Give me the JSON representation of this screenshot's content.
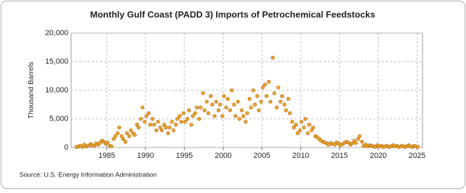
{
  "chart_data": {
    "type": "scatter",
    "title": "Monthly Gulf Coast (PADD 3) Imports of Petrochemical Feedstocks",
    "y_label": "Thousand Barrels",
    "source": "Source: U.S. Energy Information Administration",
    "color": "#f0a830",
    "edge_color": "#a05a00",
    "grid": true,
    "xlim": [
      1980.4,
      2025.7
    ],
    "ylim": [
      0,
      20000
    ],
    "xticks": [
      1985,
      1990,
      1995,
      2000,
      2005,
      2010,
      2015,
      2020,
      2025
    ],
    "yticks": [
      0,
      {
        "value": 5000,
        "label": "5,000"
      },
      {
        "value": 10000,
        "label": "10,000"
      },
      {
        "value": 15000,
        "label": "15,000"
      },
      {
        "value": 20000,
        "label": "20,000"
      }
    ],
    "x": [
      1981.1,
      1981.4,
      1981.6,
      1981.9,
      1982.1,
      1982.4,
      1982.6,
      1982.9,
      1983.1,
      1983.4,
      1983.6,
      1983.9,
      1984.1,
      1984.4,
      1984.6,
      1984.9,
      1985.1,
      1985.4,
      1985.6,
      1985.9,
      1986.1,
      1986.4,
      1986.6,
      1986.9,
      1987.1,
      1987.4,
      1987.6,
      1987.9,
      1988.1,
      1988.4,
      1988.6,
      1988.9,
      1989.1,
      1989.4,
      1989.6,
      1989.9,
      1990.1,
      1990.4,
      1990.6,
      1990.9,
      1991.1,
      1991.4,
      1991.6,
      1991.9,
      1992.1,
      1992.4,
      1992.6,
      1992.9,
      1993.1,
      1993.4,
      1993.6,
      1993.9,
      1994.1,
      1994.4,
      1994.6,
      1994.9,
      1995.1,
      1995.4,
      1995.6,
      1995.9,
      1996.1,
      1996.4,
      1996.6,
      1996.9,
      1997.1,
      1997.4,
      1997.6,
      1997.9,
      1998.1,
      1998.4,
      1998.6,
      1998.9,
      1999.1,
      1999.4,
      1999.6,
      1999.9,
      2000.1,
      2000.4,
      2000.6,
      2000.9,
      2001.1,
      2001.4,
      2001.6,
      2001.9,
      2002.1,
      2002.4,
      2002.6,
      2002.9,
      2003.1,
      2003.4,
      2003.6,
      2003.9,
      2004.1,
      2004.4,
      2004.6,
      2004.9,
      2005.1,
      2005.4,
      2005.6,
      2005.9,
      2006.1,
      2006.4,
      2006.6,
      2006.9,
      2007.1,
      2007.4,
      2007.6,
      2007.9,
      2008.1,
      2008.4,
      2008.6,
      2008.9,
      2009.1,
      2009.4,
      2009.6,
      2009.9,
      2010.1,
      2010.4,
      2010.6,
      2010.9,
      2011.1,
      2011.4,
      2011.6,
      2011.9,
      2012.1,
      2012.4,
      2012.6,
      2012.9,
      2013.1,
      2013.4,
      2013.6,
      2013.9,
      2014.1,
      2014.4,
      2014.6,
      2014.9,
      2015.1,
      2015.4,
      2015.6,
      2015.9,
      2016.1,
      2016.4,
      2016.6,
      2016.9,
      2017.1,
      2017.4,
      2017.6,
      2017.9,
      2018.1,
      2018.4,
      2018.6,
      2018.9,
      2019.1,
      2019.4,
      2019.6,
      2019.9,
      2020.1,
      2020.4,
      2020.6,
      2020.9,
      2021.1,
      2021.4,
      2021.6,
      2021.9,
      2022.1,
      2022.4,
      2022.6,
      2022.9,
      2023.1,
      2023.4,
      2023.6,
      2023.9,
      2024.1,
      2024.4,
      2024.6,
      2024.9,
      2025.1
    ],
    "values": [
      100,
      200,
      300,
      100,
      500,
      200,
      300,
      600,
      400,
      300,
      700,
      500,
      800,
      1200,
      1000,
      600,
      900,
      300,
      200,
      1500,
      2000,
      2500,
      3500,
      2000,
      1500,
      1000,
      2500,
      2000,
      3000,
      2500,
      2200,
      4000,
      3500,
      5000,
      7000,
      4500,
      5500,
      6000,
      4000,
      5000,
      4000,
      3000,
      4500,
      3500,
      3000,
      4000,
      3500,
      2500,
      3500,
      4500,
      3000,
      4000,
      5000,
      5500,
      4500,
      6000,
      4500,
      5000,
      6500,
      4000,
      5500,
      6000,
      7000,
      5000,
      7000,
      9500,
      6500,
      8000,
      6000,
      9000,
      7500,
      5500,
      8000,
      6500,
      7500,
      5500,
      9000,
      7000,
      8500,
      6500,
      10000,
      7500,
      5500,
      8000,
      5000,
      6500,
      5500,
      4500,
      6000,
      8500,
      7000,
      10000,
      7500,
      9000,
      6500,
      8000,
      10500,
      11000,
      9000,
      11500,
      8000,
      15700,
      9500,
      7000,
      10500,
      8000,
      9000,
      7500,
      6500,
      8500,
      6000,
      4500,
      3500,
      4000,
      2500,
      3000,
      4500,
      3500,
      5000,
      2500,
      4000,
      3000,
      3500,
      2000,
      1800,
      1500,
      1200,
      1000,
      900,
      700,
      500,
      800,
      600,
      500,
      900,
      700,
      400,
      600,
      800,
      1000,
      900,
      500,
      700,
      1200,
      800,
      1500,
      2000,
      1000,
      300,
      500,
      200,
      400,
      300,
      200,
      100,
      400,
      200,
      300,
      100,
      200,
      300,
      100,
      200,
      400,
      200,
      300,
      100,
      200,
      300,
      100,
      200,
      400,
      200,
      100,
      300,
      200,
      100
    ]
  }
}
